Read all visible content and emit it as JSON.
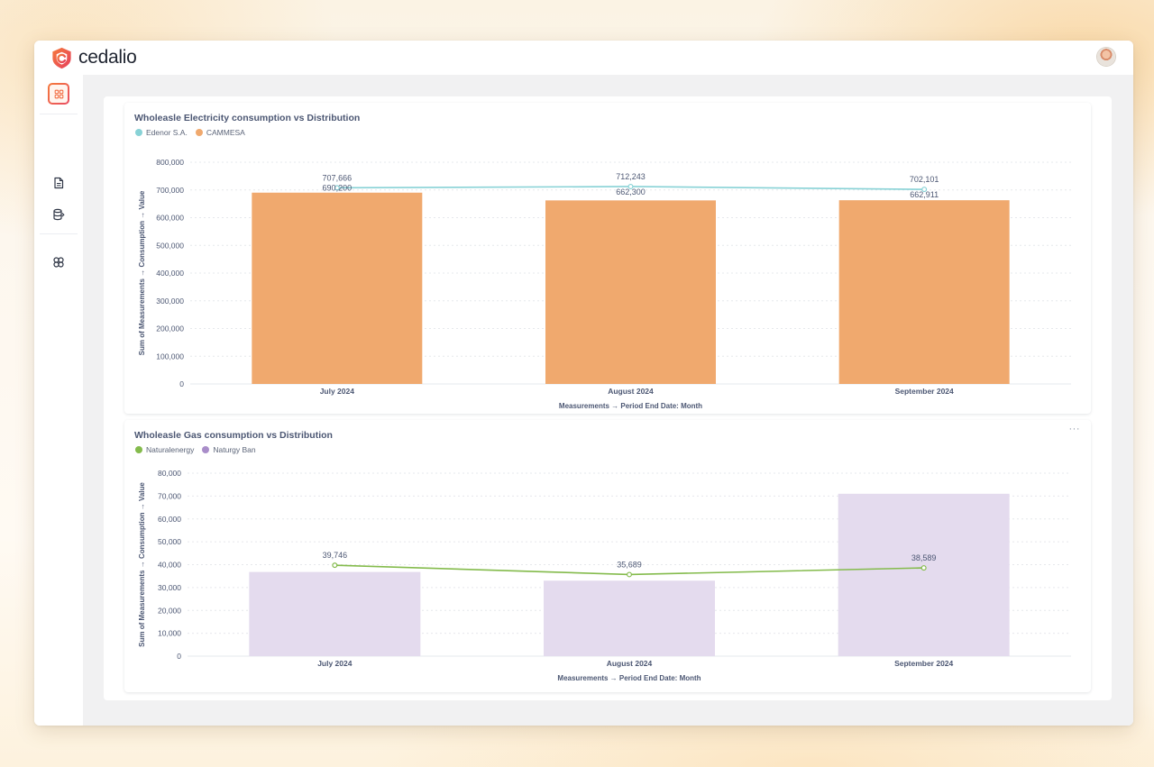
{
  "app": {
    "logo_text": "cedalio",
    "brand_colors": {
      "primary": "#f26a3e",
      "secondary": "#e94d62"
    }
  },
  "sidebar": {
    "items": [
      {
        "icon": "dashboard-grid-icon",
        "active": true
      },
      {
        "icon": "document-icon",
        "active": false
      },
      {
        "icon": "database-icon",
        "active": false
      },
      {
        "icon": "integrations-icon",
        "active": false
      },
      {
        "icon": "gear-icon",
        "active": false
      }
    ]
  },
  "header": {
    "avatar_icon": "user-avatar-icon"
  },
  "cards": [
    {
      "title": "Wholeasle Electricity consumption vs Distribution",
      "legend": [
        {
          "label": "Edenor S.A.",
          "color": "#88d2d6"
        },
        {
          "label": "CAMMESA",
          "color": "#f0a96e"
        }
      ],
      "more_label": ""
    },
    {
      "title": "Wholeasle Gas consumption vs Distribution",
      "legend": [
        {
          "label": "Naturalenergy",
          "color": "#84bb4c"
        },
        {
          "label": "Naturgy Ban",
          "color": "#a98dc9"
        }
      ],
      "more_label": "···"
    }
  ],
  "chart_data": [
    {
      "type": "bar",
      "title": "Wholeasle Electricity consumption vs Distribution",
      "categories": [
        "July 2024",
        "August 2024",
        "September 2024"
      ],
      "series": [
        {
          "name": "CAMMESA",
          "kind": "bar",
          "color": "#f0a96e",
          "values": [
            690200,
            662300,
            662911
          ],
          "labels": [
            "690,200",
            "662,300",
            "662,911"
          ]
        },
        {
          "name": "Edenor S.A.",
          "kind": "line",
          "color": "#88d2d6",
          "values": [
            707666,
            712243,
            702101
          ],
          "labels": [
            "707,666",
            "712,243",
            "702,101"
          ]
        }
      ],
      "xlabel": "Measurements → Period End Date: Month",
      "ylabel": "Sum of Measurements → Consumption → Value",
      "ylim": [
        0,
        800000
      ],
      "yticks": [
        0,
        100000,
        200000,
        300000,
        400000,
        500000,
        600000,
        700000,
        800000
      ],
      "ytick_labels": [
        "0",
        "100,000",
        "200,000",
        "300,000",
        "400,000",
        "500,000",
        "600,000",
        "700,000",
        "800,000"
      ],
      "grid": true,
      "legend_position": "top-left"
    },
    {
      "type": "bar",
      "title": "Wholeasle Gas consumption vs Distribution",
      "categories": [
        "July 2024",
        "August 2024",
        "September 2024"
      ],
      "series": [
        {
          "name": "Naturgy Ban",
          "kind": "bar",
          "color": "#e4dbee",
          "values": [
            36800,
            33000,
            71000
          ],
          "labels": [
            "",
            "",
            ""
          ]
        },
        {
          "name": "Naturalenergy",
          "kind": "line",
          "color": "#84bb4c",
          "values": [
            39746,
            35689,
            38589
          ],
          "labels": [
            "39,746",
            "35,689",
            "38,589"
          ]
        }
      ],
      "xlabel": "Measurements → Period End Date: Month",
      "ylabel": "Sum of Measurements → Consumption → Value",
      "ylim": [
        0,
        80000
      ],
      "yticks": [
        0,
        10000,
        20000,
        30000,
        40000,
        50000,
        60000,
        70000,
        80000
      ],
      "ytick_labels": [
        "0",
        "10,000",
        "20,000",
        "30,000",
        "40,000",
        "50,000",
        "60,000",
        "70,000",
        "80,000"
      ],
      "grid": true,
      "legend_position": "top-left"
    }
  ]
}
